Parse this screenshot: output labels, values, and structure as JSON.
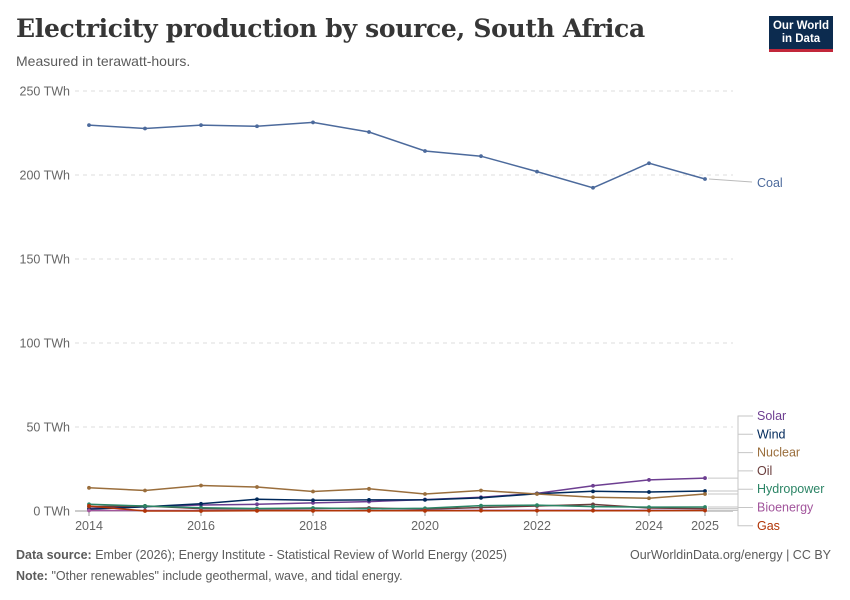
{
  "header": {
    "title": "Electricity production by source, South Africa",
    "subtitle": "Measured in terawatt-hours."
  },
  "logo": {
    "line1": "Our World",
    "line2": "in Data"
  },
  "footer": {
    "source_label": "Data source:",
    "source_text": "Ember (2026); Energy Institute - Statistical Review of World Energy (2025)",
    "note_label": "Note:",
    "note_text": "\"Other renewables\" include geothermal, wave, and tidal energy.",
    "credit": "OurWorldinData.org/energy | CC BY"
  },
  "chart_data": {
    "type": "line",
    "title": "Electricity production by source, South Africa",
    "subtitle": "Measured in terawatt-hours.",
    "ylim": [
      0,
      250
    ],
    "xlim": [
      2013.75,
      2025.5
    ],
    "y_ticks": [
      0,
      50,
      100,
      150,
      200,
      250
    ],
    "y_tick_labels": [
      "0 TWh",
      "50 TWh",
      "100 TWh",
      "150 TWh",
      "200 TWh",
      "250 TWh"
    ],
    "x_ticks": [
      2014,
      2016,
      2018,
      2020,
      2022,
      2024,
      2025
    ],
    "x_tick_labels": [
      "2014",
      "2016",
      "2018",
      "2020",
      "2022",
      "2024",
      "2025"
    ],
    "grid": "horizontal-dashed",
    "legend": "right-labels",
    "x": [
      2014,
      2015,
      2016,
      2017,
      2018,
      2019,
      2020,
      2021,
      2022,
      2023,
      2024,
      2025
    ],
    "series": [
      {
        "name": "Coal",
        "color": "#4c6a9c",
        "values": [
          229.7,
          227.7,
          229.7,
          229.0,
          231.3,
          225.6,
          214.3,
          211.2,
          202.0,
          192.4,
          207.0,
          197.6
        ]
      },
      {
        "name": "Solar",
        "color": "#6d3e91",
        "values": [
          1.5,
          2.6,
          3.6,
          4.0,
          4.8,
          5.6,
          6.8,
          8.2,
          10.5,
          15.0,
          18.5,
          19.6
        ]
      },
      {
        "name": "Wind",
        "color": "#00295b",
        "values": [
          1.0,
          2.5,
          4.3,
          7.0,
          6.4,
          6.6,
          6.6,
          7.8,
          10.3,
          11.7,
          11.3,
          11.9
        ]
      },
      {
        "name": "Nuclear",
        "color": "#9a6e3c",
        "values": [
          13.8,
          12.2,
          15.2,
          14.3,
          11.6,
          13.2,
          10.1,
          12.2,
          10.1,
          8.2,
          7.6,
          10.1
        ]
      },
      {
        "name": "Oil",
        "color": "#6a3d3c",
        "values": [
          2.6,
          3.0,
          1.4,
          1.2,
          1.4,
          1.8,
          1.1,
          2.1,
          3.0,
          3.9,
          1.8,
          1.4
        ]
      },
      {
        "name": "Hydropower",
        "color": "#2b8465",
        "values": [
          4.0,
          3.0,
          1.9,
          1.5,
          1.8,
          1.3,
          1.6,
          3.2,
          3.5,
          2.6,
          2.3,
          2.4
        ]
      },
      {
        "name": "Bioenergy",
        "color": "#a2559c",
        "values": [
          0.3,
          0.3,
          0.3,
          0.3,
          0.3,
          0.3,
          0.3,
          0.4,
          0.4,
          0.4,
          0.4,
          0.4
        ]
      },
      {
        "name": "Gas",
        "color": "#b13507",
        "values": [
          3.0,
          0.0,
          0.0,
          0.1,
          0.1,
          0.1,
          0.1,
          0.2,
          0.2,
          0.2,
          0.2,
          0.3
        ]
      }
    ]
  }
}
